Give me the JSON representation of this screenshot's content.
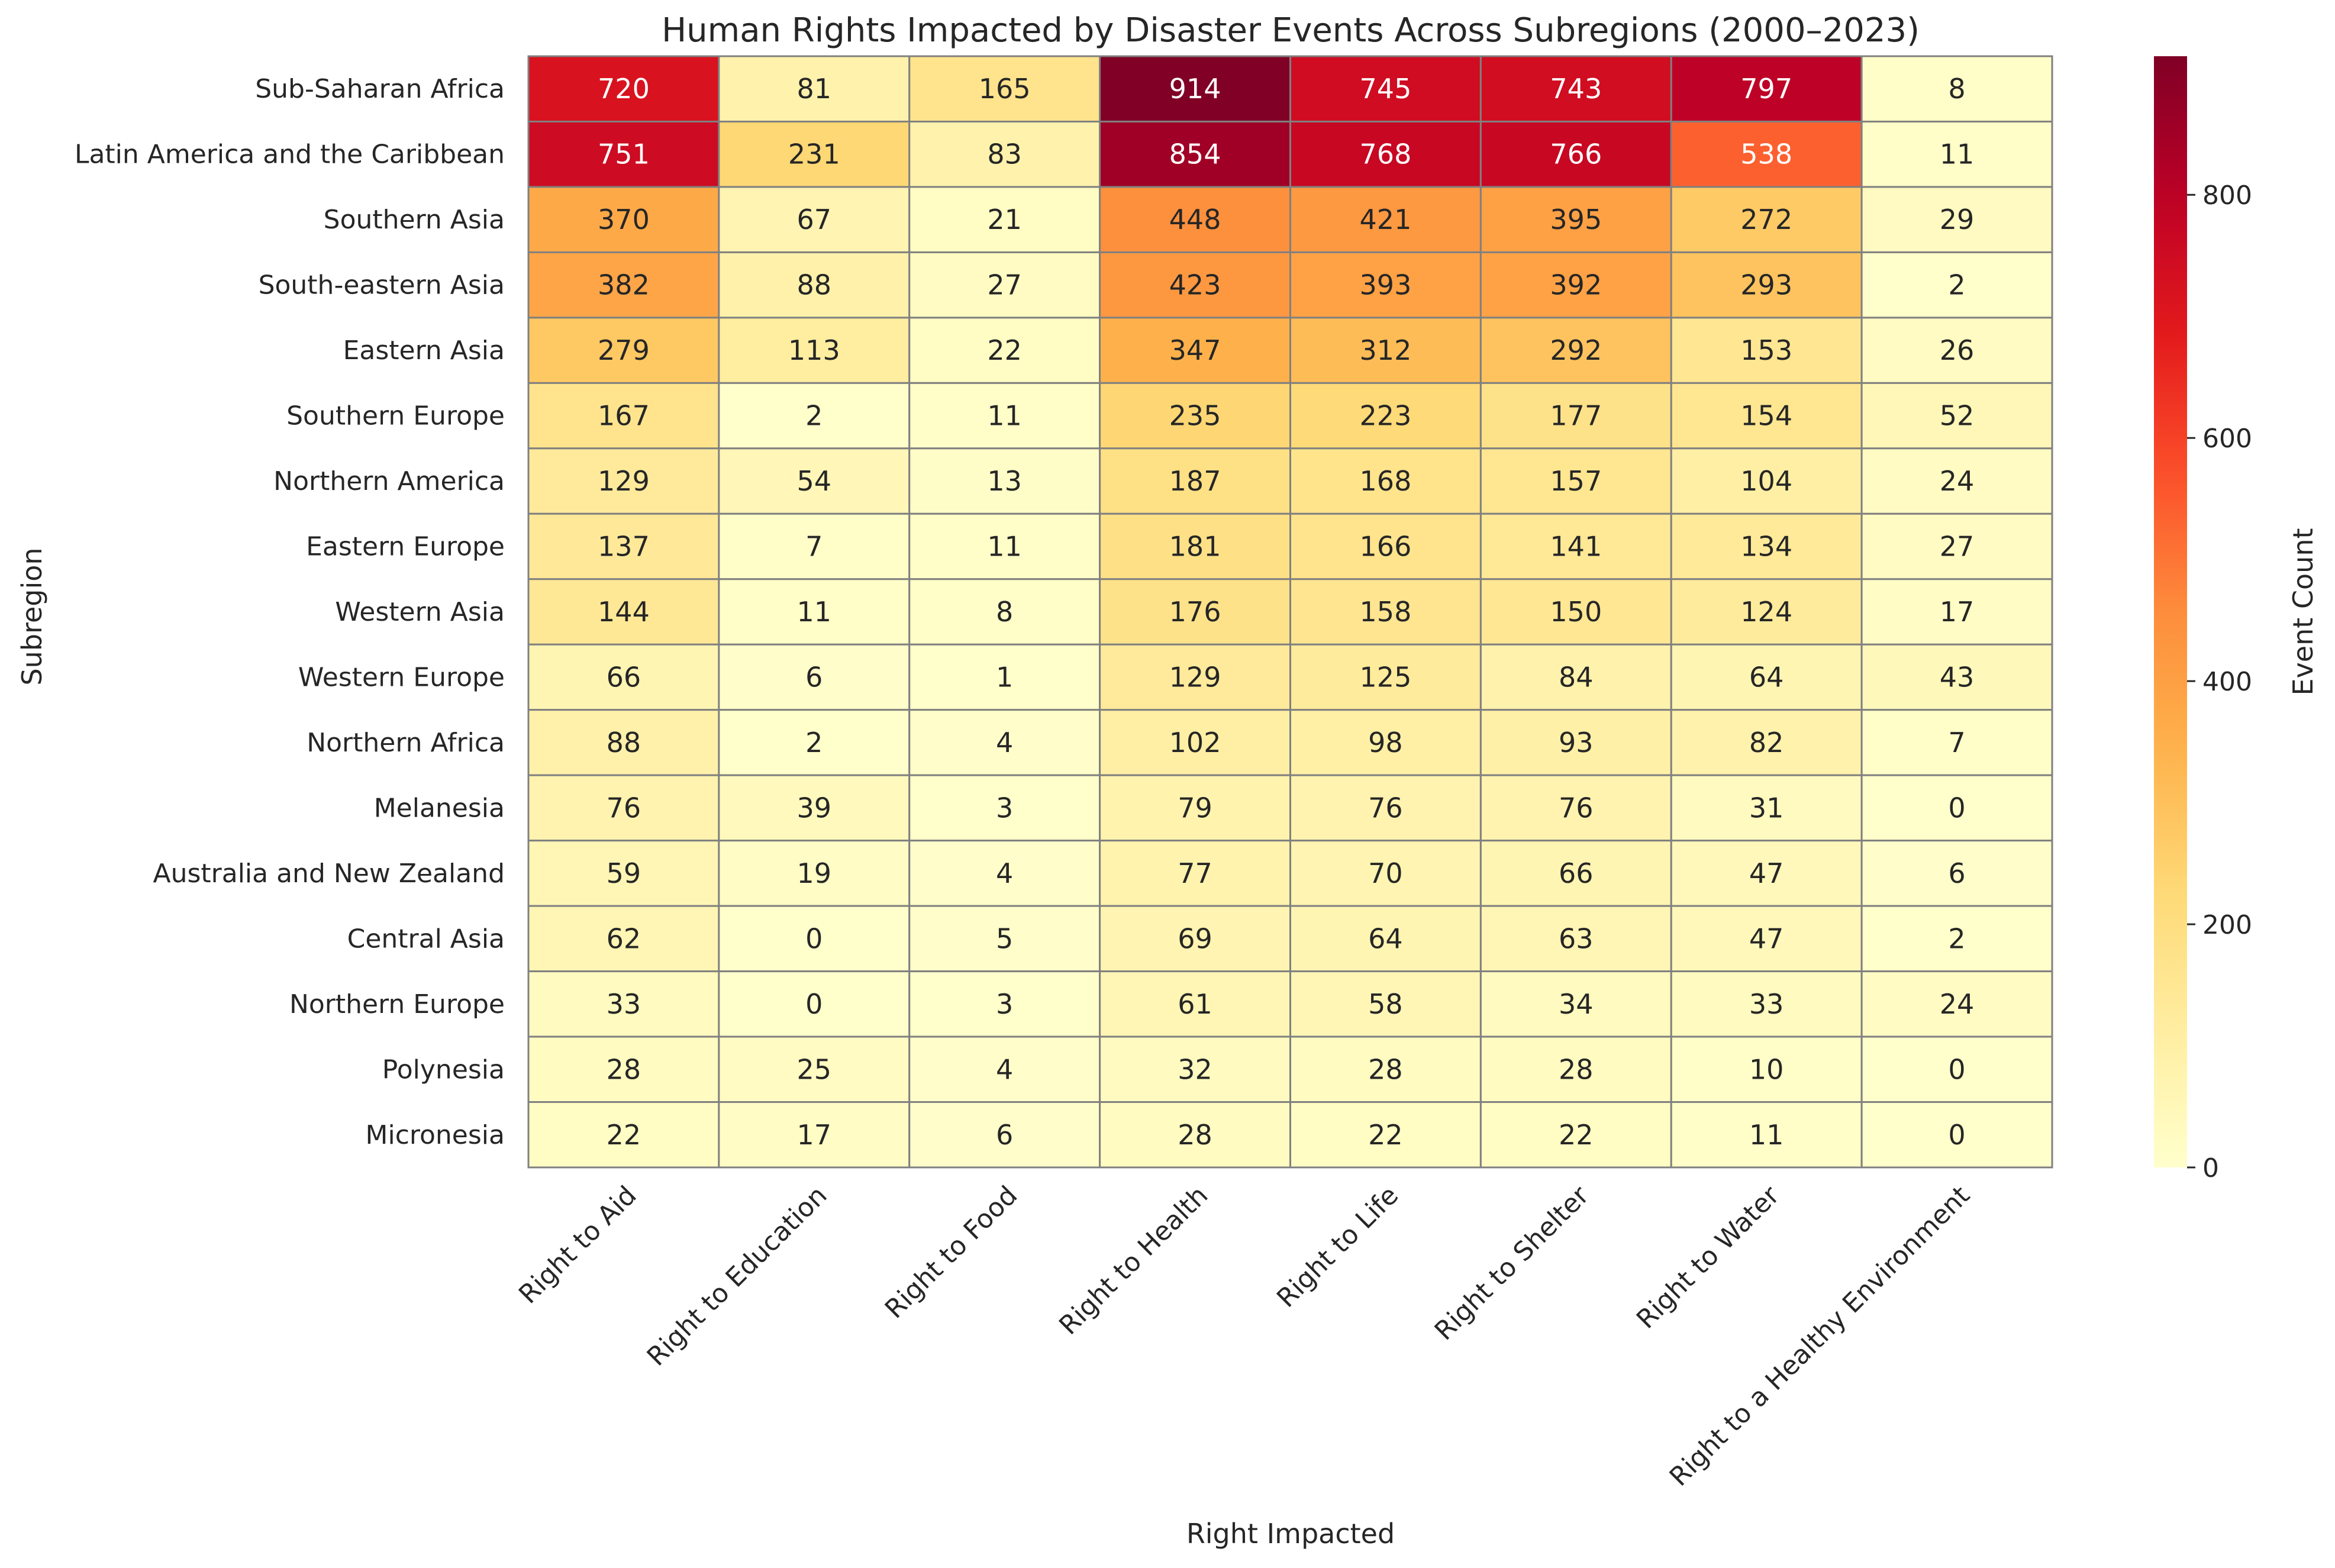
{
  "chart_data": {
    "type": "heatmap",
    "title": "Human Rights Impacted by Disaster Events Across Subregions (2000–2023)",
    "xlabel": "Right Impacted",
    "ylabel": "Subregion",
    "colorbar_label": "Event Count",
    "colormap": "YlOrRd",
    "vmin": 0,
    "vmax": 914,
    "colorbar_ticks": [
      0,
      200,
      400,
      600,
      800
    ],
    "grid": true,
    "columns": [
      "Right to Aid",
      "Right to Education",
      "Right to Food",
      "Right to Health",
      "Right to Life",
      "Right to Shelter",
      "Right to Water",
      "Right to a Healthy Environment"
    ],
    "rows": [
      "Sub-Saharan Africa",
      "Latin America and the Caribbean",
      "Southern Asia",
      "South-eastern Asia",
      "Eastern Asia",
      "Southern Europe",
      "Northern America",
      "Eastern Europe",
      "Western Asia",
      "Western Europe",
      "Northern Africa",
      "Melanesia",
      "Australia and New Zealand",
      "Central Asia",
      "Northern Europe",
      "Polynesia",
      "Micronesia"
    ],
    "values": [
      [
        720,
        81,
        165,
        914,
        745,
        743,
        797,
        8
      ],
      [
        751,
        231,
        83,
        854,
        768,
        766,
        538,
        11
      ],
      [
        370,
        67,
        21,
        448,
        421,
        395,
        272,
        29
      ],
      [
        382,
        88,
        27,
        423,
        393,
        392,
        293,
        2
      ],
      [
        279,
        113,
        22,
        347,
        312,
        292,
        153,
        26
      ],
      [
        167,
        2,
        11,
        235,
        223,
        177,
        154,
        52
      ],
      [
        129,
        54,
        13,
        187,
        168,
        157,
        104,
        24
      ],
      [
        137,
        7,
        11,
        181,
        166,
        141,
        134,
        27
      ],
      [
        144,
        11,
        8,
        176,
        158,
        150,
        124,
        17
      ],
      [
        66,
        6,
        1,
        129,
        125,
        84,
        64,
        43
      ],
      [
        88,
        2,
        4,
        102,
        98,
        93,
        82,
        7
      ],
      [
        76,
        39,
        3,
        79,
        76,
        76,
        31,
        0
      ],
      [
        59,
        19,
        4,
        77,
        70,
        66,
        47,
        6
      ],
      [
        62,
        0,
        5,
        69,
        64,
        63,
        47,
        2
      ],
      [
        33,
        0,
        3,
        61,
        58,
        34,
        33,
        24
      ],
      [
        28,
        25,
        4,
        32,
        28,
        28,
        10,
        0
      ],
      [
        22,
        17,
        6,
        28,
        22,
        22,
        11,
        0
      ]
    ]
  }
}
